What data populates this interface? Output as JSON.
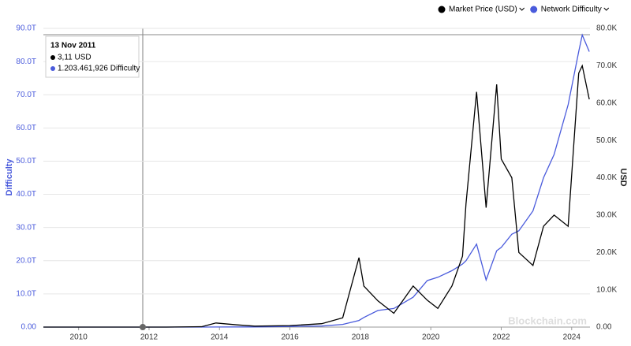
{
  "chart_data": {
    "type": "line",
    "legend": [
      "Market Price (USD)",
      "Network Difficulty"
    ],
    "y_label": "Difficulty",
    "y2_label": "USD",
    "watermark": "Blockchain.com",
    "tooltip": {
      "date": "13 Nov 2011",
      "price": "3,11 USD",
      "difficulty": "1.203.461,926 Difficulty"
    },
    "x": [
      2009.0,
      2010.5,
      2011.5,
      2012.5,
      2013.5,
      2013.9,
      2014.5,
      2015.0,
      2016.0,
      2016.9,
      2017.5,
      2017.96,
      2018.1,
      2018.5,
      2018.95,
      2019.5,
      2019.9,
      2020.2,
      2020.6,
      2020.9,
      2021.0,
      2021.3,
      2021.57,
      2021.87,
      2022.0,
      2022.3,
      2022.5,
      2022.9,
      2023.2,
      2023.5,
      2023.9,
      2024.2,
      2024.3,
      2024.5
    ],
    "xlim": [
      2009.0,
      2024.52
    ],
    "xticks": [
      2010,
      2012,
      2014,
      2016,
      2018,
      2020,
      2022,
      2024
    ],
    "ylim": [
      0,
      90
    ],
    "yticks": [
      {
        "value": 0,
        "label": "0.00"
      },
      {
        "value": 10,
        "label": "10.0T"
      },
      {
        "value": 20,
        "label": "20.0T"
      },
      {
        "value": 30,
        "label": "30.0T"
      },
      {
        "value": 40,
        "label": "40.0T"
      },
      {
        "value": 50,
        "label": "50.0T"
      },
      {
        "value": 60,
        "label": "60.0T"
      },
      {
        "value": 70,
        "label": "70.0T"
      },
      {
        "value": 80,
        "label": "80.0T"
      },
      {
        "value": 90,
        "label": "90.0T"
      }
    ],
    "y2lim": [
      0,
      80
    ],
    "y2ticks": [
      {
        "value": 0,
        "label": "0.00"
      },
      {
        "value": 10,
        "label": "10.0K"
      },
      {
        "value": 20,
        "label": "20.0K"
      },
      {
        "value": 30,
        "label": "30.0K"
      },
      {
        "value": 40,
        "label": "40.0K"
      },
      {
        "value": 50,
        "label": "50.0K"
      },
      {
        "value": 60,
        "label": "60.0K"
      },
      {
        "value": 70,
        "label": "70.0K"
      },
      {
        "value": 80,
        "label": "80.0K"
      }
    ],
    "series": [
      {
        "name": "Market Price (USD)",
        "color": "#000000",
        "axis": "y2",
        "values": [
          0,
          0,
          0.01,
          0.01,
          0.1,
          1.1,
          0.6,
          0.25,
          0.4,
          0.9,
          2.5,
          18.6,
          11,
          7,
          3.7,
          11,
          7.2,
          5,
          11,
          19,
          33,
          63,
          32,
          65,
          45,
          40,
          20,
          16.5,
          27,
          30,
          27,
          68,
          70,
          61
        ]
      },
      {
        "name": "Network Difficulty",
        "color": "#4a5bdc",
        "values": [
          0,
          0,
          0,
          0,
          0.01,
          0.03,
          0.05,
          0.05,
          0.2,
          0.3,
          0.8,
          2,
          2.9,
          5,
          5.6,
          9,
          14,
          15,
          17,
          19,
          20,
          25,
          14.2,
          23,
          24,
          28,
          29,
          35,
          45,
          52,
          67,
          83,
          88,
          83
        ]
      }
    ]
  }
}
